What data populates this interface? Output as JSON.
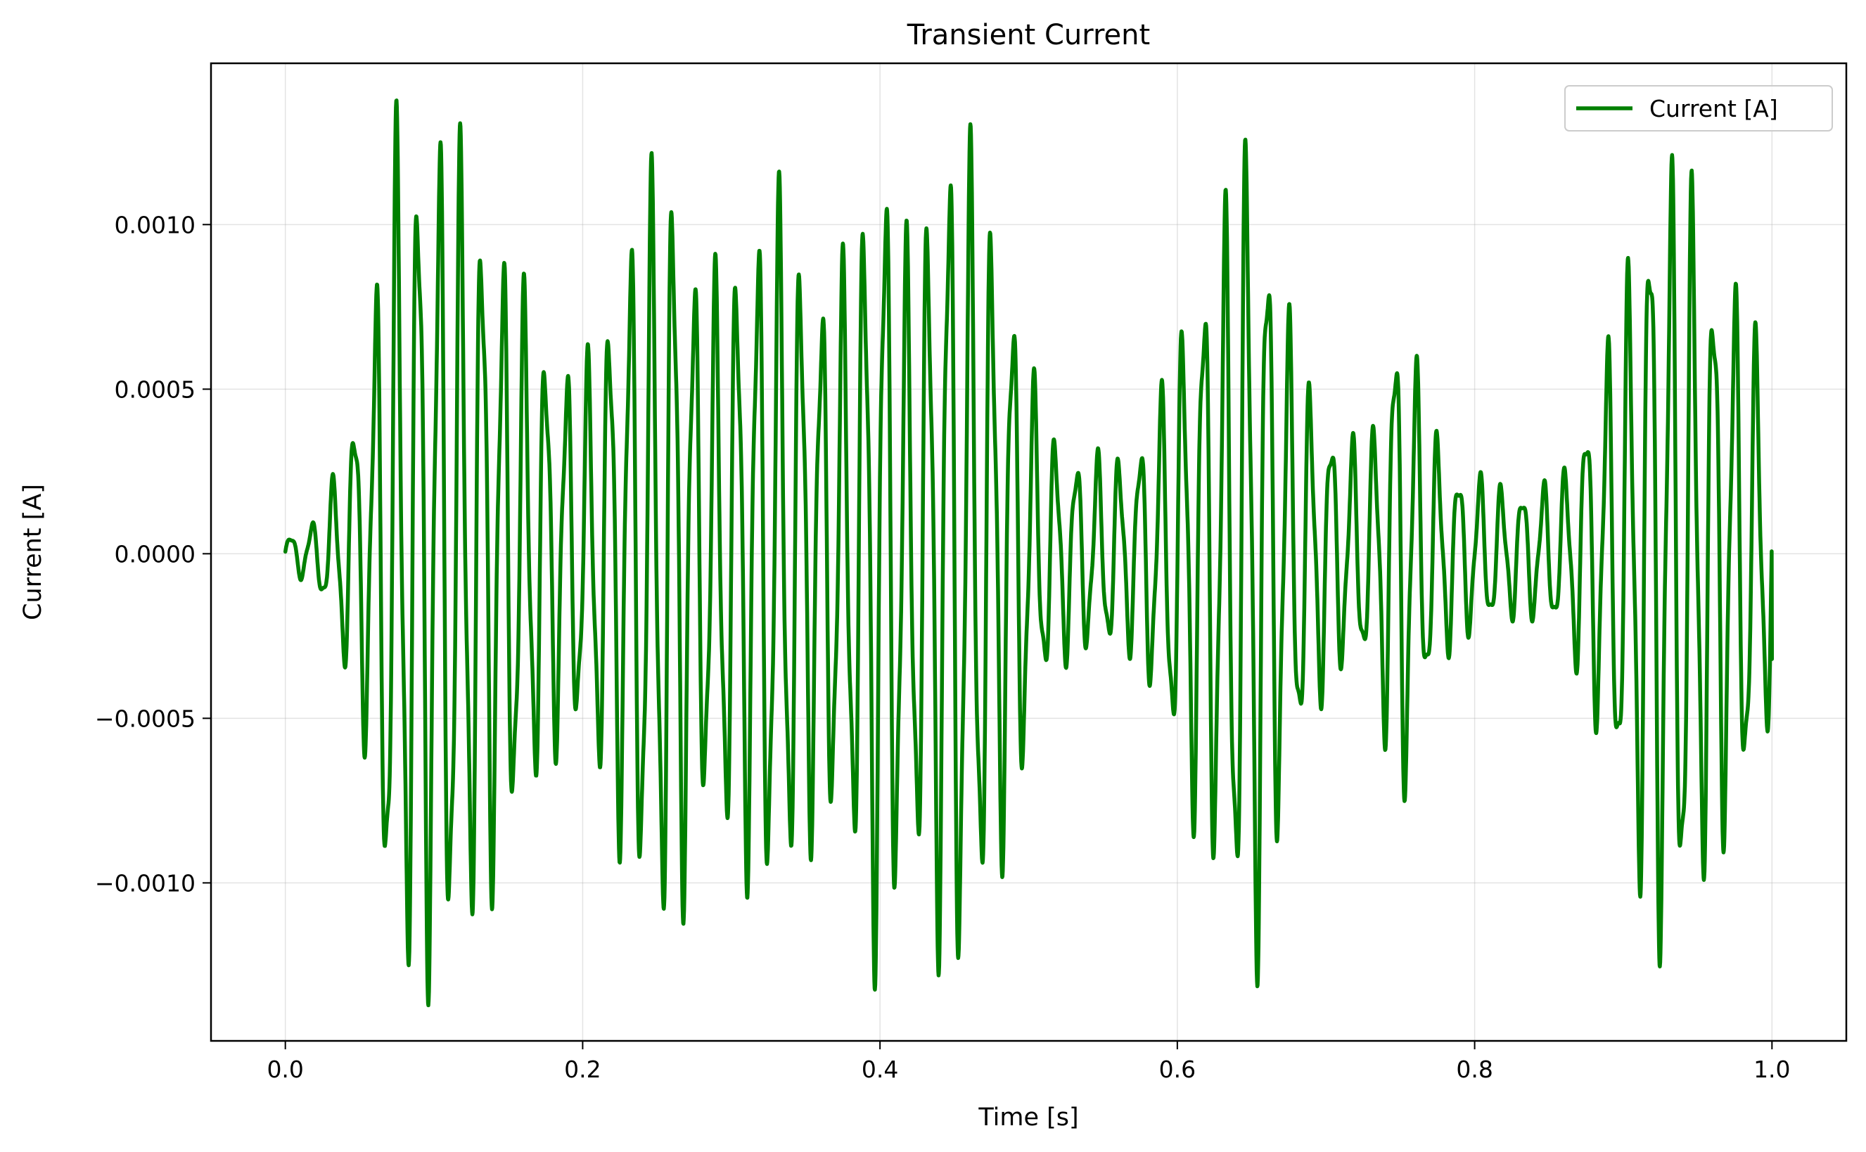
{
  "chart_data": {
    "type": "line",
    "title": "Transient Current",
    "xlabel": "Time [s]",
    "ylabel": "Current [A]",
    "xlim": [
      -0.05,
      1.05
    ],
    "ylim": [
      -0.00148,
      0.00149
    ],
    "xticks": [
      0.0,
      0.2,
      0.4,
      0.6,
      0.8,
      1.0
    ],
    "xtick_labels": [
      "0.0",
      "0.2",
      "0.4",
      "0.6",
      "0.8",
      "1.0"
    ],
    "yticks": [
      -0.001,
      -0.0005,
      0.0,
      0.0005,
      0.001
    ],
    "ytick_labels": [
      "−0.0010",
      "−0.0005",
      "0.0000",
      "0.0005",
      "0.0010"
    ],
    "grid": true,
    "legend_position": "top-right",
    "series": [
      {
        "name": "Current [A]",
        "color": "#008000",
        "x_range": [
          0.0,
          1.0
        ],
        "envelope": {
          "t": [
            0.0,
            0.02,
            0.03,
            0.04,
            0.05,
            0.06,
            0.07,
            0.09,
            0.11,
            0.13,
            0.15,
            0.17,
            0.18,
            0.2,
            0.22,
            0.24,
            0.26,
            0.28,
            0.3,
            0.33,
            0.36,
            0.38,
            0.4,
            0.42,
            0.45,
            0.47,
            0.49,
            0.51,
            0.53,
            0.55,
            0.57,
            0.59,
            0.61,
            0.63,
            0.65,
            0.67,
            0.69,
            0.71,
            0.73,
            0.75,
            0.77,
            0.79,
            0.8,
            0.82,
            0.84,
            0.86,
            0.88,
            0.9,
            0.92,
            0.94,
            0.96,
            0.98,
            1.0
          ],
          "amplitude": [
            5e-05,
            0.0001,
            0.0002,
            0.00035,
            0.0005,
            0.00075,
            0.0013,
            0.00128,
            0.0013,
            0.0011,
            0.0009,
            0.0007,
            0.0006,
            0.00055,
            0.0008,
            0.0011,
            0.0012,
            0.0008,
            0.0009,
            0.0011,
            0.0008,
            0.0009,
            0.0013,
            0.0009,
            0.00135,
            0.0011,
            0.0008,
            0.0004,
            0.0003,
            0.0003,
            0.0003,
            0.0005,
            0.0008,
            0.001,
            0.00135,
            0.0008,
            0.0005,
            0.00035,
            0.00035,
            0.0008,
            0.0004,
            0.00025,
            0.00025,
            0.0002,
            0.0002,
            0.00025,
            0.0005,
            0.0008,
            0.0012,
            0.0012,
            0.0009,
            0.0008,
            0.0005
          ]
        },
        "carrier_frequency_hz": 70,
        "secondary_frequency_hz": 163,
        "secondary_weight": 0.22,
        "end_value": -0.00032
      }
    ]
  }
}
